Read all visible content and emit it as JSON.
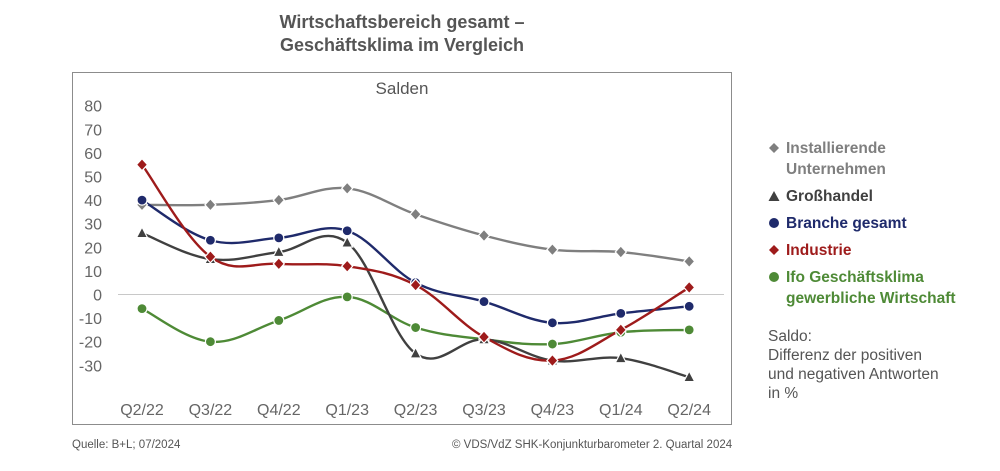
{
  "title_line1": "Wirtschaftsbereich gesamt –",
  "title_line2": "Geschäftsklima im Vergleich",
  "source": "Quelle: B+L; 07/2024",
  "copyright": "© VDS/VdZ SHK-Konjunkturbarometer 2. Quartal 2024",
  "saldo_note": [
    "Saldo:",
    "Differenz der positiven",
    "und negativen Antworten",
    "in %"
  ],
  "chart_data": {
    "type": "line",
    "subtitle": "Salden",
    "categories": [
      "Q2/22",
      "Q3/22",
      "Q4/22",
      "Q1/23",
      "Q2/23",
      "Q3/23",
      "Q4/23",
      "Q1/24",
      "Q2/24"
    ],
    "y_ticks": [
      80,
      70,
      60,
      50,
      40,
      30,
      20,
      10,
      0,
      -10,
      -20,
      -30
    ],
    "ylim": [
      -40,
      80
    ],
    "grid": false,
    "legend_position": "right",
    "series": [
      {
        "name": "Installierende Unternehmen",
        "color": "#7f7f7f",
        "marker": "diamond",
        "values": [
          38,
          38,
          40,
          45,
          34,
          25,
          19,
          18,
          14
        ]
      },
      {
        "name": "Großhandel",
        "color": "#404040",
        "marker": "triangle",
        "values": [
          26,
          15,
          18,
          22,
          -25,
          -19,
          -28,
          -27,
          -35
        ]
      },
      {
        "name": "Branche gesamt",
        "color": "#1f2a6b",
        "marker": "circle",
        "values": [
          40,
          23,
          24,
          27,
          5,
          -3,
          -12,
          -8,
          -5
        ]
      },
      {
        "name": "Industrie",
        "color": "#9e1b1b",
        "marker": "diamond",
        "values": [
          55,
          16,
          13,
          12,
          4,
          -18,
          -28,
          -15,
          3
        ]
      },
      {
        "name": "Ifo Geschäftsklima gewerbliche Wirtschaft",
        "color": "#4e8a36",
        "marker": "circle",
        "values": [
          -6,
          -20,
          -11,
          -1,
          -14,
          -19,
          -21,
          -16,
          -15
        ]
      }
    ]
  }
}
